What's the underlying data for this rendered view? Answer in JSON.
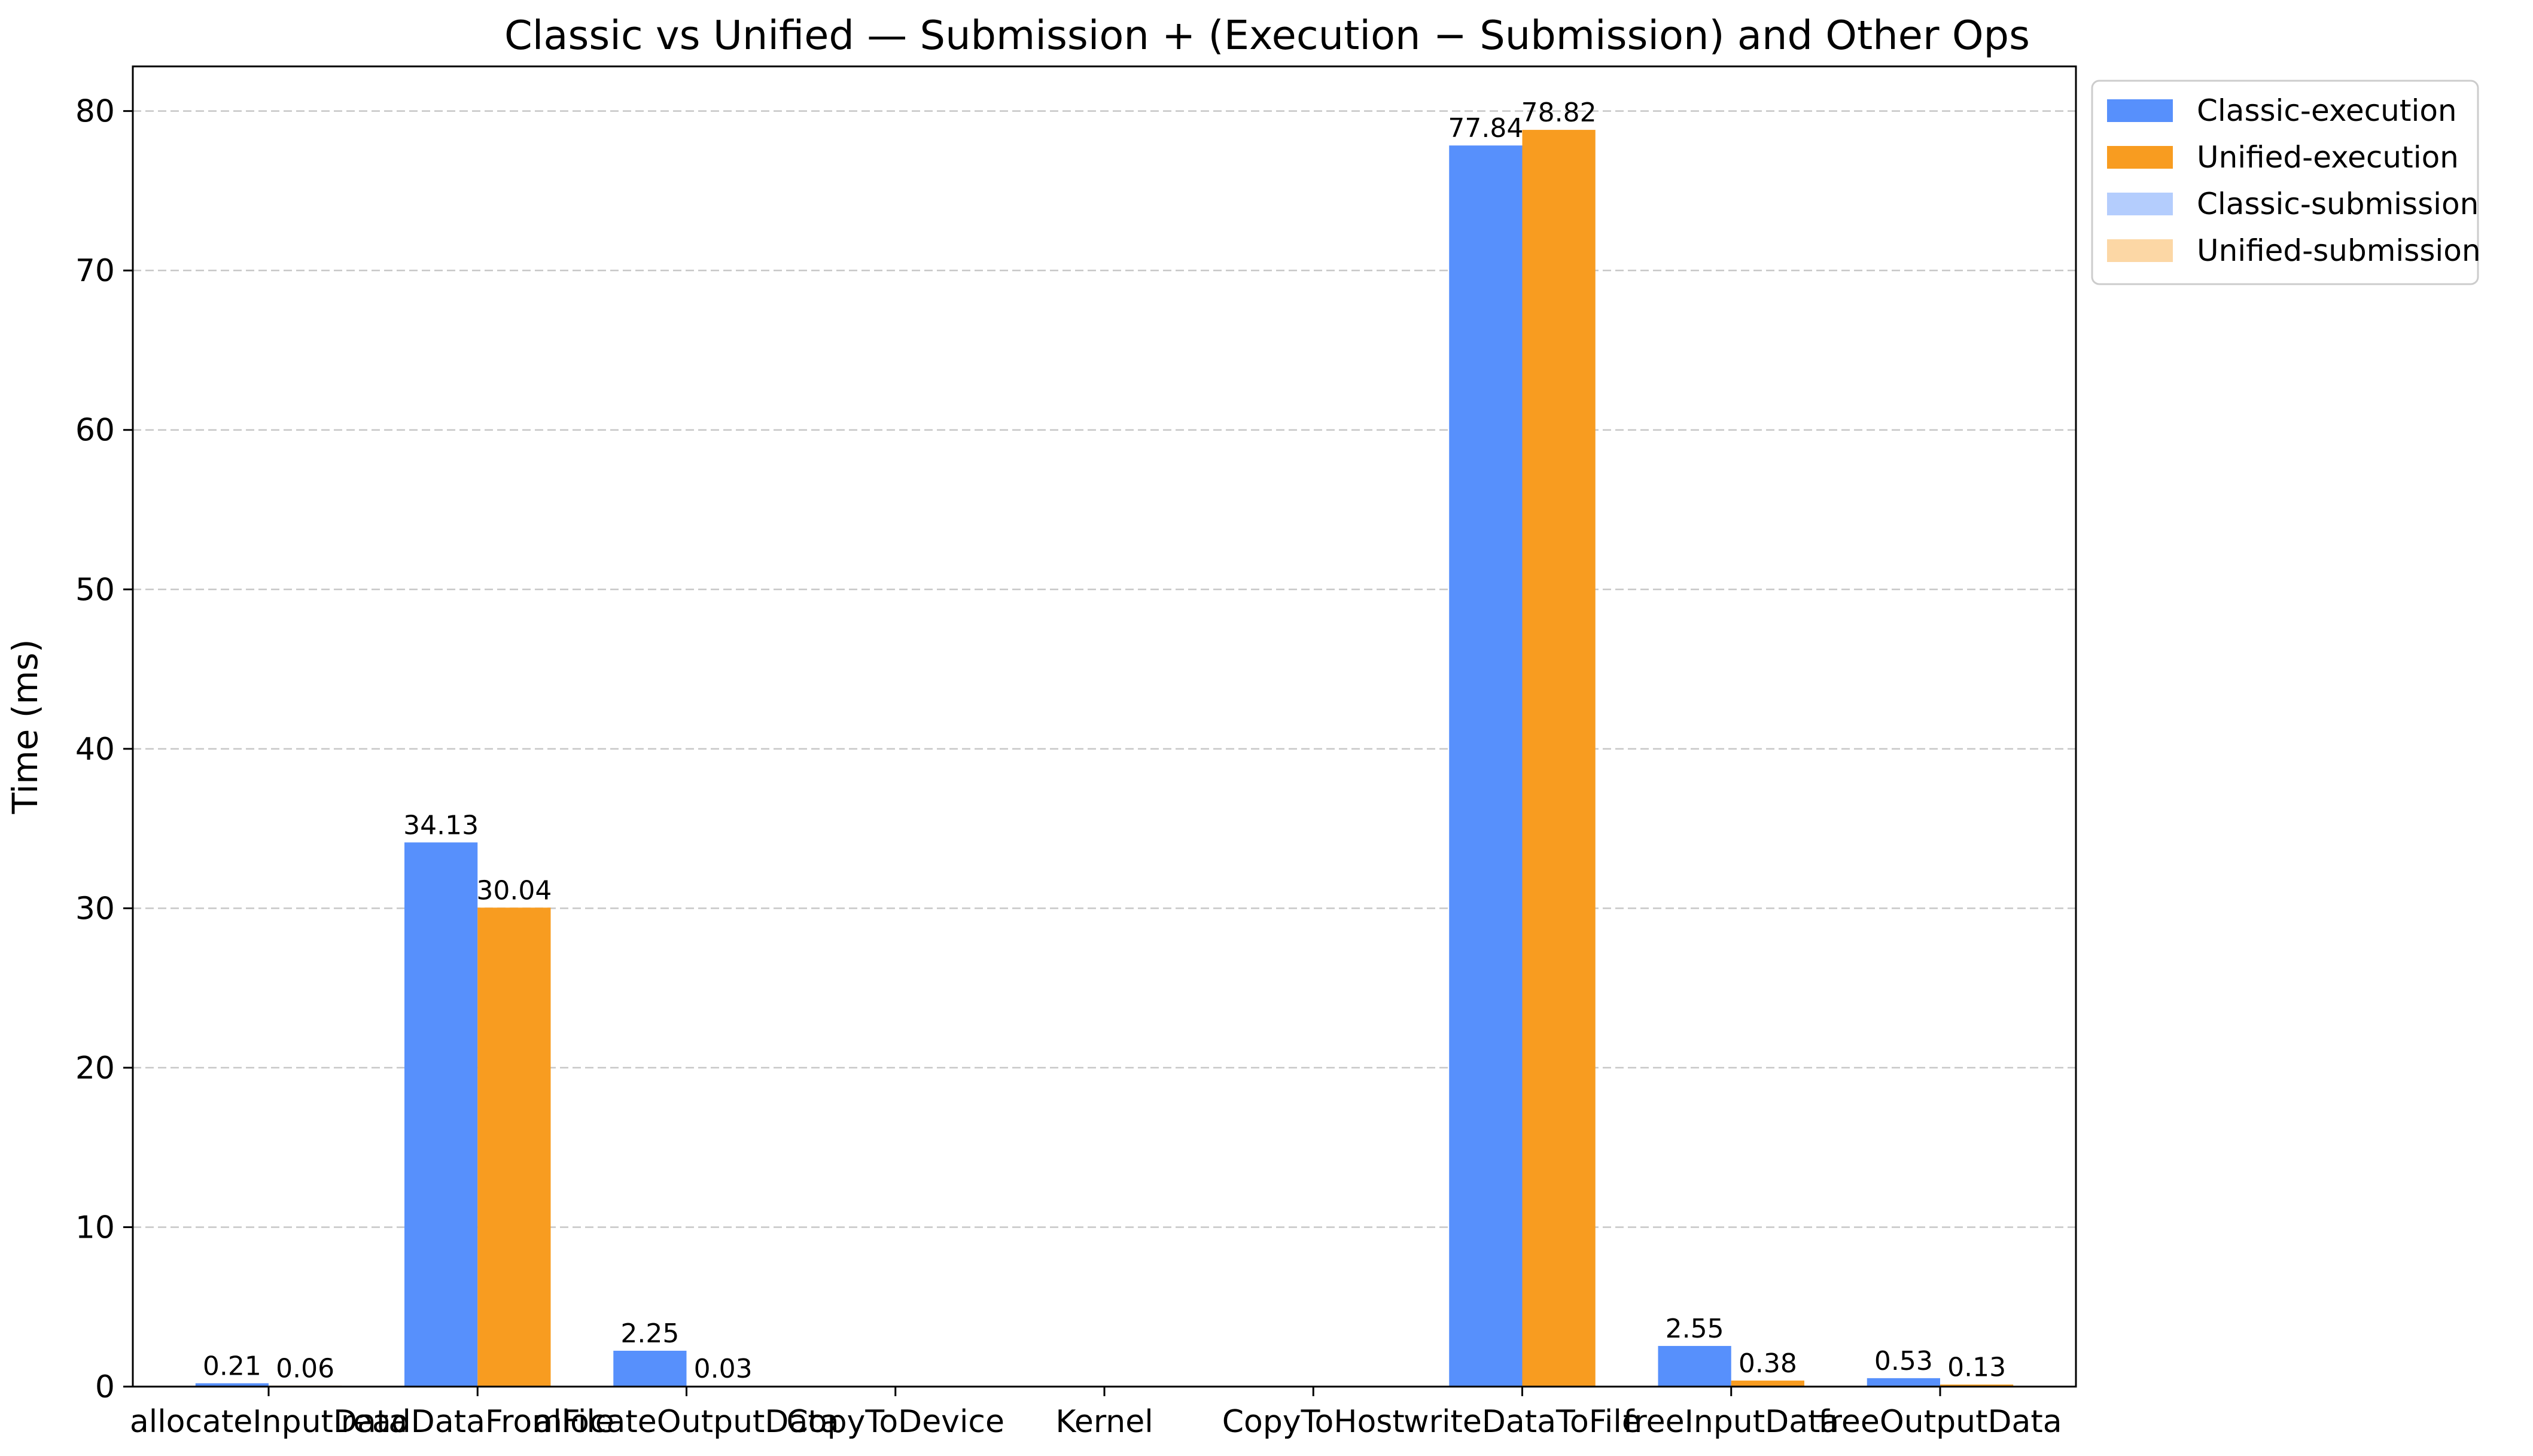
{
  "chart_data": {
    "type": "bar",
    "title": "Classic vs Unified — Submission + (Execution − Submission) and Other Ops",
    "xlabel": "",
    "ylabel": "Time (ms)",
    "ylim": [
      0,
      82.8
    ],
    "yticks": [
      0,
      10,
      20,
      30,
      40,
      50,
      60,
      70,
      80
    ],
    "grid": "y-dashed",
    "legend_position": "outside-top-right",
    "categories": [
      "allocateInputData",
      "readDataFromFile",
      "allocateOutputData",
      "CopyToDevice",
      "Kernel",
      "CopyToHost",
      "writeDataToFile",
      "freeInputData",
      "freeOutputData"
    ],
    "series": [
      {
        "name": "Classic-execution",
        "color": "#5790fc",
        "values": [
          0.21,
          34.13,
          2.25,
          0,
          0,
          0,
          77.84,
          2.55,
          0.53
        ],
        "labels": [
          "0.21",
          "34.13",
          "2.25",
          "",
          "",
          "",
          "77.84",
          "2.55",
          "0.53"
        ]
      },
      {
        "name": "Unified-execution",
        "color": "#f89c20",
        "values": [
          0.06,
          30.04,
          0.03,
          0,
          0,
          0,
          78.82,
          0.38,
          0.13
        ],
        "labels": [
          "0.06",
          "30.04",
          "0.03",
          "",
          "",
          "",
          "78.82",
          "0.38",
          "0.13"
        ]
      },
      {
        "name": "Classic-submission",
        "color": "#b4cdfd",
        "values": [
          0,
          0,
          0,
          0,
          0,
          0,
          0,
          0,
          0
        ],
        "labels": []
      },
      {
        "name": "Unified-submission",
        "color": "#fcd7a5",
        "values": [
          0,
          0,
          0,
          0,
          0,
          0,
          0,
          0,
          0
        ],
        "labels": []
      }
    ]
  }
}
